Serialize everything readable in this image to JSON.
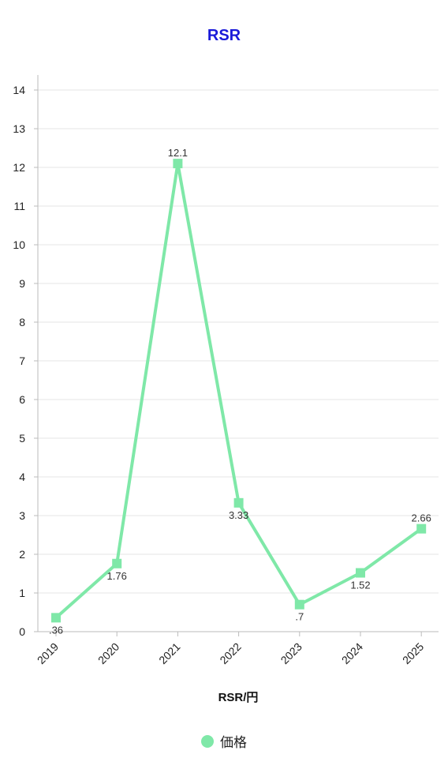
{
  "chart_data": {
    "type": "line",
    "title": "RSR",
    "xlabel": "RSR/円",
    "ylabel": "",
    "categories": [
      "2019",
      "2020",
      "2021",
      "2022",
      "2023",
      "2024",
      "2025"
    ],
    "series": [
      {
        "name": "価格",
        "values": [
          0.36,
          1.76,
          12.1,
          3.33,
          0.7,
          1.52,
          2.66
        ],
        "data_labels": [
          ".36",
          "1.76",
          "12.1",
          "3.33",
          ".7",
          "1.52",
          "2.66"
        ]
      }
    ],
    "ylim": [
      0,
      14
    ],
    "yticks": [
      0,
      1,
      2,
      3,
      4,
      5,
      6,
      7,
      8,
      9,
      10,
      11,
      12,
      13,
      14
    ],
    "grid": true,
    "legend_position": "bottom",
    "colors": {
      "title": "#1a1ad9",
      "series": "#7fe8a8",
      "grid": "#e6e6e6",
      "axis": "#bbbbbb"
    }
  }
}
